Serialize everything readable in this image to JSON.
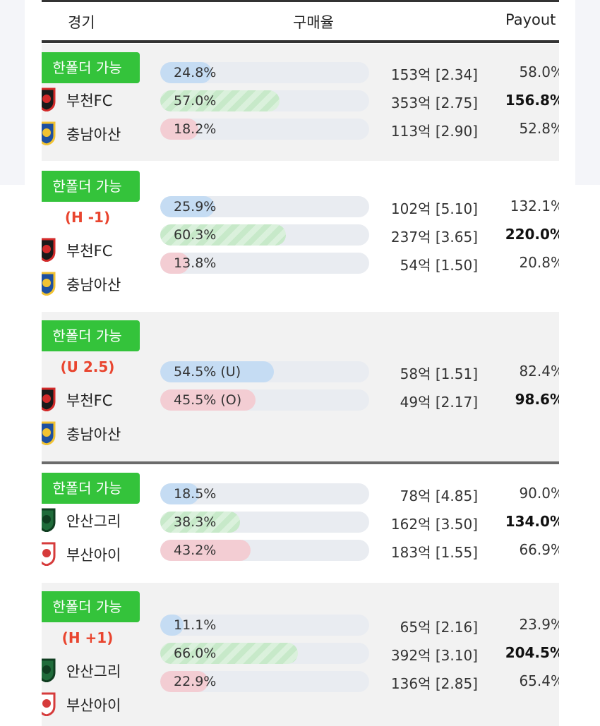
{
  "header": {
    "columns": [
      "경기",
      "구매율",
      "Payout"
    ]
  },
  "groups": [
    {
      "badge": "한폴더 가능",
      "teams": [
        "부천FC",
        "충남아산"
      ],
      "options": [
        {
          "rate": 24.8,
          "rate_label": "24.8%",
          "color": "#c5dcf3",
          "amount": "153억 [2.34]",
          "payout": "58.0%",
          "bold": false
        },
        {
          "rate": 57.0,
          "rate_label": "57.0%",
          "color": "#c7e9c9",
          "amount": "353억 [2.75]",
          "payout": "156.8%",
          "bold": true
        },
        {
          "rate": 18.2,
          "rate_label": "18.2%",
          "color": "#f3cdd3",
          "amount": "113억 [2.90]",
          "payout": "52.8%",
          "bold": false
        }
      ]
    },
    {
      "badge": "한폴더 가능",
      "handicap": "(H -1)",
      "teams": [
        "부천FC",
        "충남아산"
      ],
      "options": [
        {
          "rate": 25.9,
          "rate_label": "25.9%",
          "color": "#c5dcf3",
          "amount": "102억 [5.10]",
          "payout": "132.1%",
          "bold": false
        },
        {
          "rate": 60.3,
          "rate_label": "60.3%",
          "color": "#c7e9c9",
          "amount": "237억 [3.65]",
          "payout": "220.0%",
          "bold": true
        },
        {
          "rate": 13.8,
          "rate_label": "13.8%",
          "color": "#f3cdd3",
          "amount": "54억 [1.50]",
          "payout": "20.8%",
          "bold": false
        }
      ]
    },
    {
      "badge": "한폴더 가능",
      "handicap": "(U 2.5)",
      "teams": [
        "부천FC",
        "충남아산"
      ],
      "options": [
        {
          "rate": 54.5,
          "rate_label": "54.5% (U)",
          "color": "#c5dcf3",
          "amount": "58억 [1.51]",
          "payout": "82.4%",
          "bold": false
        },
        {
          "rate": 45.5,
          "rate_label": "45.5% (O)",
          "color": "#f3cdd3",
          "amount": "49억 [2.17]",
          "payout": "98.6%",
          "bold": true
        }
      ]
    },
    {
      "badge": "한폴더 가능",
      "teams": [
        "안산그리",
        "부산아이"
      ],
      "options": [
        {
          "rate": 18.5,
          "rate_label": "18.5%",
          "color": "#c5dcf3",
          "amount": "78억 [4.85]",
          "payout": "90.0%",
          "bold": false
        },
        {
          "rate": 38.3,
          "rate_label": "38.3%",
          "color": "#c7e9c9",
          "amount": "162억 [3.50]",
          "payout": "134.0%",
          "bold": true
        },
        {
          "rate": 43.2,
          "rate_label": "43.2%",
          "color": "#f3cdd3",
          "amount": "183억 [1.55]",
          "payout": "66.9%",
          "bold": false
        }
      ]
    },
    {
      "badge": "한폴더 가능",
      "handicap": "(H +1)",
      "teams": [
        "안산그리",
        "부산아이"
      ],
      "options": [
        {
          "rate": 11.1,
          "rate_label": "11.1%",
          "color": "#c5dcf3",
          "amount": "65억 [2.16]",
          "payout": "23.9%",
          "bold": false
        },
        {
          "rate": 66.0,
          "rate_label": "66.0%",
          "color": "#c7e9c9",
          "amount": "392억 [3.10]",
          "payout": "204.5%",
          "bold": true
        },
        {
          "rate": 22.9,
          "rate_label": "22.9%",
          "color": "#f3cdd3",
          "amount": "136억 [2.85]",
          "payout": "65.4%",
          "bold": false
        }
      ]
    }
  ]
}
